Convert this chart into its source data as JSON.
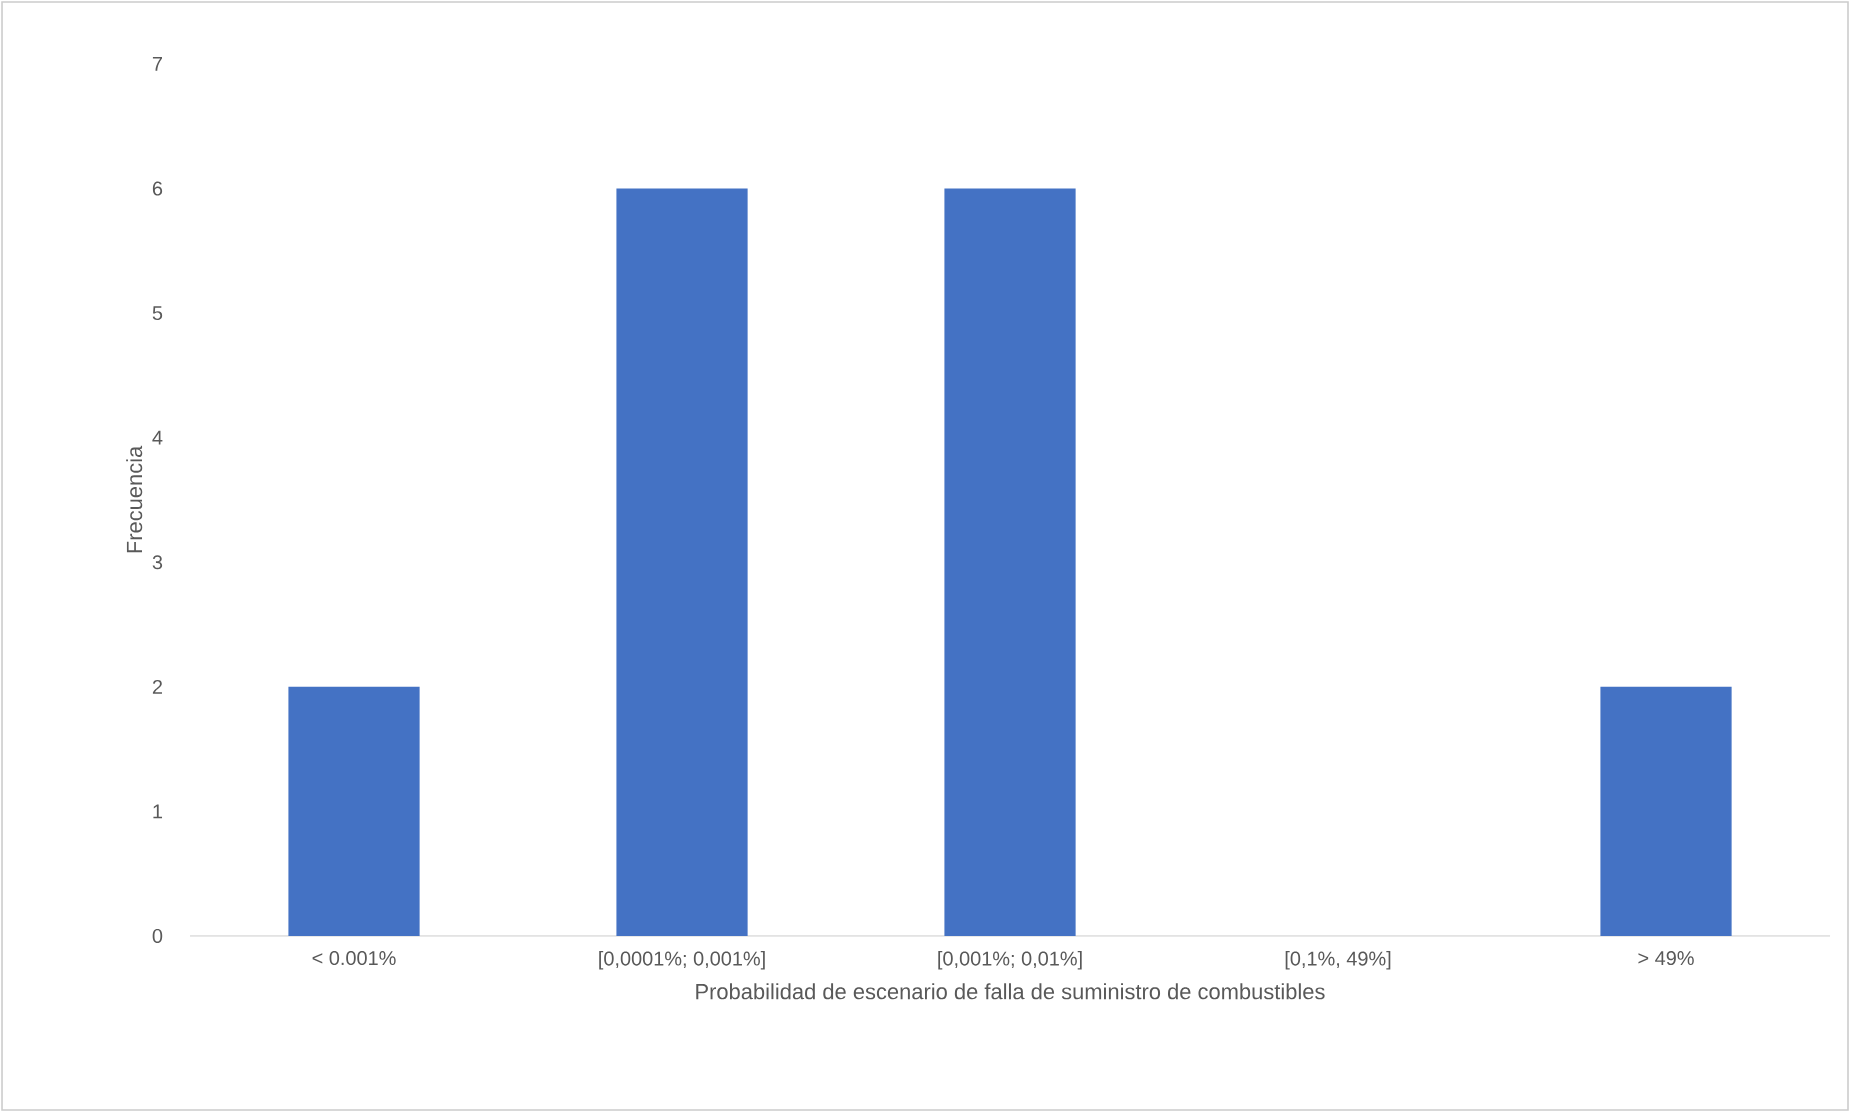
{
  "chart_data": {
    "type": "bar",
    "xlabel": "Probabilidad de escenario de falla de suministro de combustibles",
    "ylabel": "Frecuencia",
    "categories": [
      "< 0.001%",
      "[0,0001%; 0,001%]",
      "[0,001%; 0,01%]",
      "[0,1%, 49%]",
      "> 49%"
    ],
    "values": [
      2,
      6,
      6,
      0,
      2
    ],
    "color": "#4472c4",
    "ylim": [
      0,
      7
    ],
    "yticks": [
      0,
      1,
      2,
      3,
      4,
      5,
      6,
      7
    ]
  }
}
